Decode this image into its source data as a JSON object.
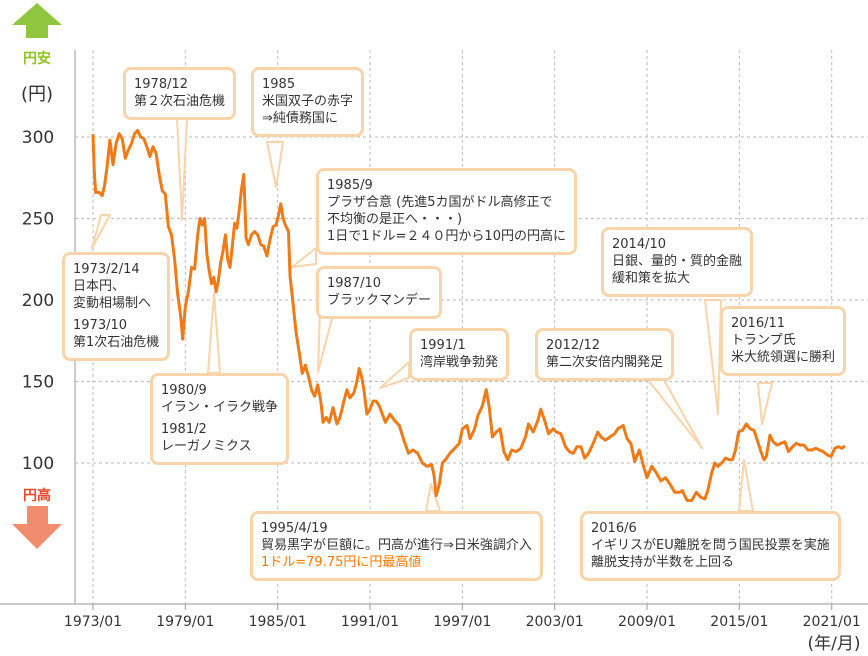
{
  "chart_data": {
    "type": "line",
    "xlabel": "(年/月)",
    "ylabel": "(円)",
    "xticks": [
      "1973/01",
      "1979/01",
      "1985/01",
      "1991/01",
      "1997/01",
      "2003/01",
      "2009/01",
      "2015/01",
      "2021/01"
    ],
    "yticks": [
      100,
      150,
      200,
      250,
      300
    ],
    "ylim": [
      15,
      350
    ],
    "xlim": [
      1973.0,
      2022.2
    ],
    "grid": true,
    "up_label": "円安",
    "down_label": "円高",
    "series": [
      {
        "values": [
          [
            1973.0,
            301
          ],
          [
            1973.08,
            280
          ],
          [
            1973.17,
            266
          ],
          [
            1973.4,
            266
          ],
          [
            1973.6,
            264
          ],
          [
            1973.75,
            270
          ],
          [
            1973.9,
            281
          ],
          [
            1974.1,
            298
          ],
          [
            1974.3,
            283
          ],
          [
            1974.5,
            296
          ],
          [
            1974.7,
            302
          ],
          [
            1974.9,
            299
          ],
          [
            1975.1,
            287
          ],
          [
            1975.3,
            292
          ],
          [
            1975.5,
            296
          ],
          [
            1975.7,
            302
          ],
          [
            1975.9,
            304
          ],
          [
            1976.1,
            300
          ],
          [
            1976.3,
            299
          ],
          [
            1976.5,
            294
          ],
          [
            1976.7,
            288
          ],
          [
            1976.9,
            294
          ],
          [
            1977.1,
            290
          ],
          [
            1977.3,
            277
          ],
          [
            1977.5,
            267
          ],
          [
            1977.7,
            265
          ],
          [
            1977.9,
            245
          ],
          [
            1978.1,
            240
          ],
          [
            1978.3,
            225
          ],
          [
            1978.5,
            204
          ],
          [
            1978.7,
            190
          ],
          [
            1978.83,
            176
          ],
          [
            1979.0,
            196
          ],
          [
            1979.2,
            205
          ],
          [
            1979.4,
            220
          ],
          [
            1979.6,
            219
          ],
          [
            1979.8,
            240
          ],
          [
            1979.95,
            250
          ],
          [
            1980.1,
            246
          ],
          [
            1980.25,
            250
          ],
          [
            1980.4,
            228
          ],
          [
            1980.55,
            218
          ],
          [
            1980.7,
            210
          ],
          [
            1980.85,
            214
          ],
          [
            1981.0,
            205
          ],
          [
            1981.15,
            212
          ],
          [
            1981.3,
            223
          ],
          [
            1981.45,
            230
          ],
          [
            1981.6,
            240
          ],
          [
            1981.75,
            225
          ],
          [
            1981.9,
            220
          ],
          [
            1982.05,
            233
          ],
          [
            1982.2,
            247
          ],
          [
            1982.35,
            244
          ],
          [
            1982.5,
            255
          ],
          [
            1982.65,
            268
          ],
          [
            1982.8,
            277
          ],
          [
            1982.95,
            238
          ],
          [
            1983.1,
            234
          ],
          [
            1983.3,
            240
          ],
          [
            1983.5,
            242
          ],
          [
            1983.7,
            240
          ],
          [
            1983.9,
            234
          ],
          [
            1984.1,
            233
          ],
          [
            1984.3,
            227
          ],
          [
            1984.5,
            237
          ],
          [
            1984.7,
            245
          ],
          [
            1984.9,
            246
          ],
          [
            1985.1,
            254
          ],
          [
            1985.2,
            259
          ],
          [
            1985.35,
            250
          ],
          [
            1985.5,
            246
          ],
          [
            1985.7,
            242
          ],
          [
            1985.8,
            215
          ],
          [
            1985.95,
            202
          ],
          [
            1986.2,
            180
          ],
          [
            1986.4,
            168
          ],
          [
            1986.6,
            155
          ],
          [
            1986.8,
            160
          ],
          [
            1987.0,
            153
          ],
          [
            1987.2,
            145
          ],
          [
            1987.4,
            141
          ],
          [
            1987.6,
            148
          ],
          [
            1987.8,
            138
          ],
          [
            1987.95,
            125
          ],
          [
            1988.15,
            128
          ],
          [
            1988.35,
            125
          ],
          [
            1988.6,
            134
          ],
          [
            1988.85,
            124
          ],
          [
            1989.05,
            128
          ],
          [
            1989.3,
            138
          ],
          [
            1989.5,
            145
          ],
          [
            1989.7,
            140
          ],
          [
            1989.95,
            143
          ],
          [
            1990.15,
            150
          ],
          [
            1990.3,
            158
          ],
          [
            1990.45,
            153
          ],
          [
            1990.6,
            145
          ],
          [
            1990.8,
            130
          ],
          [
            1991.0,
            133
          ],
          [
            1991.2,
            138
          ],
          [
            1991.4,
            138
          ],
          [
            1991.6,
            135
          ],
          [
            1991.8,
            130
          ],
          [
            1992.0,
            125
          ],
          [
            1992.3,
            130
          ],
          [
            1992.6,
            126
          ],
          [
            1992.9,
            123
          ],
          [
            1993.2,
            114
          ],
          [
            1993.5,
            106
          ],
          [
            1993.8,
            108
          ],
          [
            1994.1,
            106
          ],
          [
            1994.4,
            100
          ],
          [
            1994.7,
            98
          ],
          [
            1995.0,
            99
          ],
          [
            1995.15,
            93
          ],
          [
            1995.3,
            80
          ],
          [
            1995.5,
            87
          ],
          [
            1995.7,
            100
          ],
          [
            1995.9,
            102
          ],
          [
            1996.2,
            106
          ],
          [
            1996.5,
            109
          ],
          [
            1996.8,
            112
          ],
          [
            1997.0,
            121
          ],
          [
            1997.3,
            123
          ],
          [
            1997.5,
            115
          ],
          [
            1997.8,
            121
          ],
          [
            1998.0,
            129
          ],
          [
            1998.3,
            135
          ],
          [
            1998.55,
            145
          ],
          [
            1998.75,
            134
          ],
          [
            1998.95,
            116
          ],
          [
            1999.2,
            119
          ],
          [
            1999.45,
            121
          ],
          [
            1999.7,
            107
          ],
          [
            1999.95,
            102
          ],
          [
            2000.2,
            108
          ],
          [
            2000.5,
            107
          ],
          [
            2000.8,
            109
          ],
          [
            2001.1,
            116
          ],
          [
            2001.3,
            124
          ],
          [
            2001.6,
            119
          ],
          [
            2001.9,
            126
          ],
          [
            2002.1,
            133
          ],
          [
            2002.35,
            126
          ],
          [
            2002.6,
            118
          ],
          [
            2002.9,
            121
          ],
          [
            2003.1,
            119
          ],
          [
            2003.4,
            118
          ],
          [
            2003.7,
            110
          ],
          [
            2003.95,
            107
          ],
          [
            2004.2,
            106
          ],
          [
            2004.45,
            110
          ],
          [
            2004.7,
            110
          ],
          [
            2004.95,
            103
          ],
          [
            2005.2,
            106
          ],
          [
            2005.5,
            112
          ],
          [
            2005.8,
            119
          ],
          [
            2006.0,
            116
          ],
          [
            2006.3,
            114
          ],
          [
            2006.6,
            116
          ],
          [
            2006.9,
            118
          ],
          [
            2007.1,
            121
          ],
          [
            2007.45,
            123
          ],
          [
            2007.7,
            115
          ],
          [
            2007.95,
            112
          ],
          [
            2008.2,
            101
          ],
          [
            2008.5,
            108
          ],
          [
            2008.8,
            97
          ],
          [
            2009.0,
            91
          ],
          [
            2009.3,
            98
          ],
          [
            2009.6,
            94
          ],
          [
            2009.9,
            89
          ],
          [
            2010.2,
            91
          ],
          [
            2010.5,
            87
          ],
          [
            2010.8,
            82
          ],
          [
            2011.1,
            82
          ],
          [
            2011.3,
            83
          ],
          [
            2011.6,
            77
          ],
          [
            2011.9,
            77
          ],
          [
            2012.2,
            82
          ],
          [
            2012.5,
            79
          ],
          [
            2012.75,
            78
          ],
          [
            2012.95,
            83
          ],
          [
            2013.2,
            94
          ],
          [
            2013.4,
            100
          ],
          [
            2013.6,
            98
          ],
          [
            2013.85,
            100
          ],
          [
            2014.1,
            103
          ],
          [
            2014.35,
            102
          ],
          [
            2014.55,
            102
          ],
          [
            2014.75,
            108
          ],
          [
            2014.95,
            119
          ],
          [
            2015.2,
            120
          ],
          [
            2015.45,
            124
          ],
          [
            2015.7,
            121
          ],
          [
            2015.95,
            120
          ],
          [
            2016.2,
            113
          ],
          [
            2016.4,
            107
          ],
          [
            2016.6,
            102
          ],
          [
            2016.75,
            104
          ],
          [
            2016.9,
            112
          ],
          [
            2016.98,
            117
          ],
          [
            2017.2,
            113
          ],
          [
            2017.45,
            111
          ],
          [
            2017.7,
            112
          ],
          [
            2017.95,
            113
          ],
          [
            2018.2,
            107
          ],
          [
            2018.45,
            110
          ],
          [
            2018.7,
            112
          ],
          [
            2018.95,
            111
          ],
          [
            2019.2,
            111
          ],
          [
            2019.45,
            108
          ],
          [
            2019.7,
            108
          ],
          [
            2019.95,
            109
          ],
          [
            2020.2,
            108
          ],
          [
            2020.45,
            107
          ],
          [
            2020.7,
            105
          ],
          [
            2020.95,
            104
          ],
          [
            2021.2,
            109
          ],
          [
            2021.45,
            110
          ],
          [
            2021.65,
            109
          ],
          [
            2021.8,
            110
          ]
        ]
      }
    ],
    "annotations": [
      {
        "date": "1973/2/14",
        "text": "日本円、\n変動相場制へ"
      },
      {
        "date": "1973/10",
        "text": "第1次石油危機"
      },
      {
        "date": "1978/12",
        "text": "第２次石油危機"
      },
      {
        "date": "1980/9",
        "text": "イラン・イラク戦争"
      },
      {
        "date": "1981/2",
        "text": "レーガノミクス"
      },
      {
        "date": "1985",
        "text": "米国双子の赤字\n⇒純債務国に"
      },
      {
        "date": "1985/9",
        "text": "プラザ合意 (先進5カ国がドル高修正で\n不均衡の是正へ・・・)\n1日で1ドル=２４０円から10円の円高に"
      },
      {
        "date": "1987/10",
        "text": "ブラックマンデー"
      },
      {
        "date": "1991/1",
        "text": "湾岸戦争勃発"
      },
      {
        "date": "1995/4/19",
        "text": "貿易黒字が巨額に。円高が進行⇒日米強調介入",
        "highlight": "1ドル=79.75円に円最高値"
      },
      {
        "date": "2012/12",
        "text": "第二次安倍内閣発足"
      },
      {
        "date": "2014/10",
        "text": "日銀、量的・質的金融\n緩和策を拡大"
      },
      {
        "date": "2016/11",
        "text": "トランプ氏\n米大統領選に勝利"
      },
      {
        "date": "2016/6",
        "text": "イギリスがEU離脱を問う国民投票を実施\n離脱支持が半数を上回る"
      }
    ]
  },
  "colors": {
    "line": "#ee7a18",
    "callout_border": "#f7d4aa",
    "grid": "#bbbbbb",
    "up": "#8ec63f",
    "down": "#f28c6e",
    "up_text": "#8dc21f",
    "down_text": "#e8492a",
    "highlight": "#ff7a00"
  }
}
